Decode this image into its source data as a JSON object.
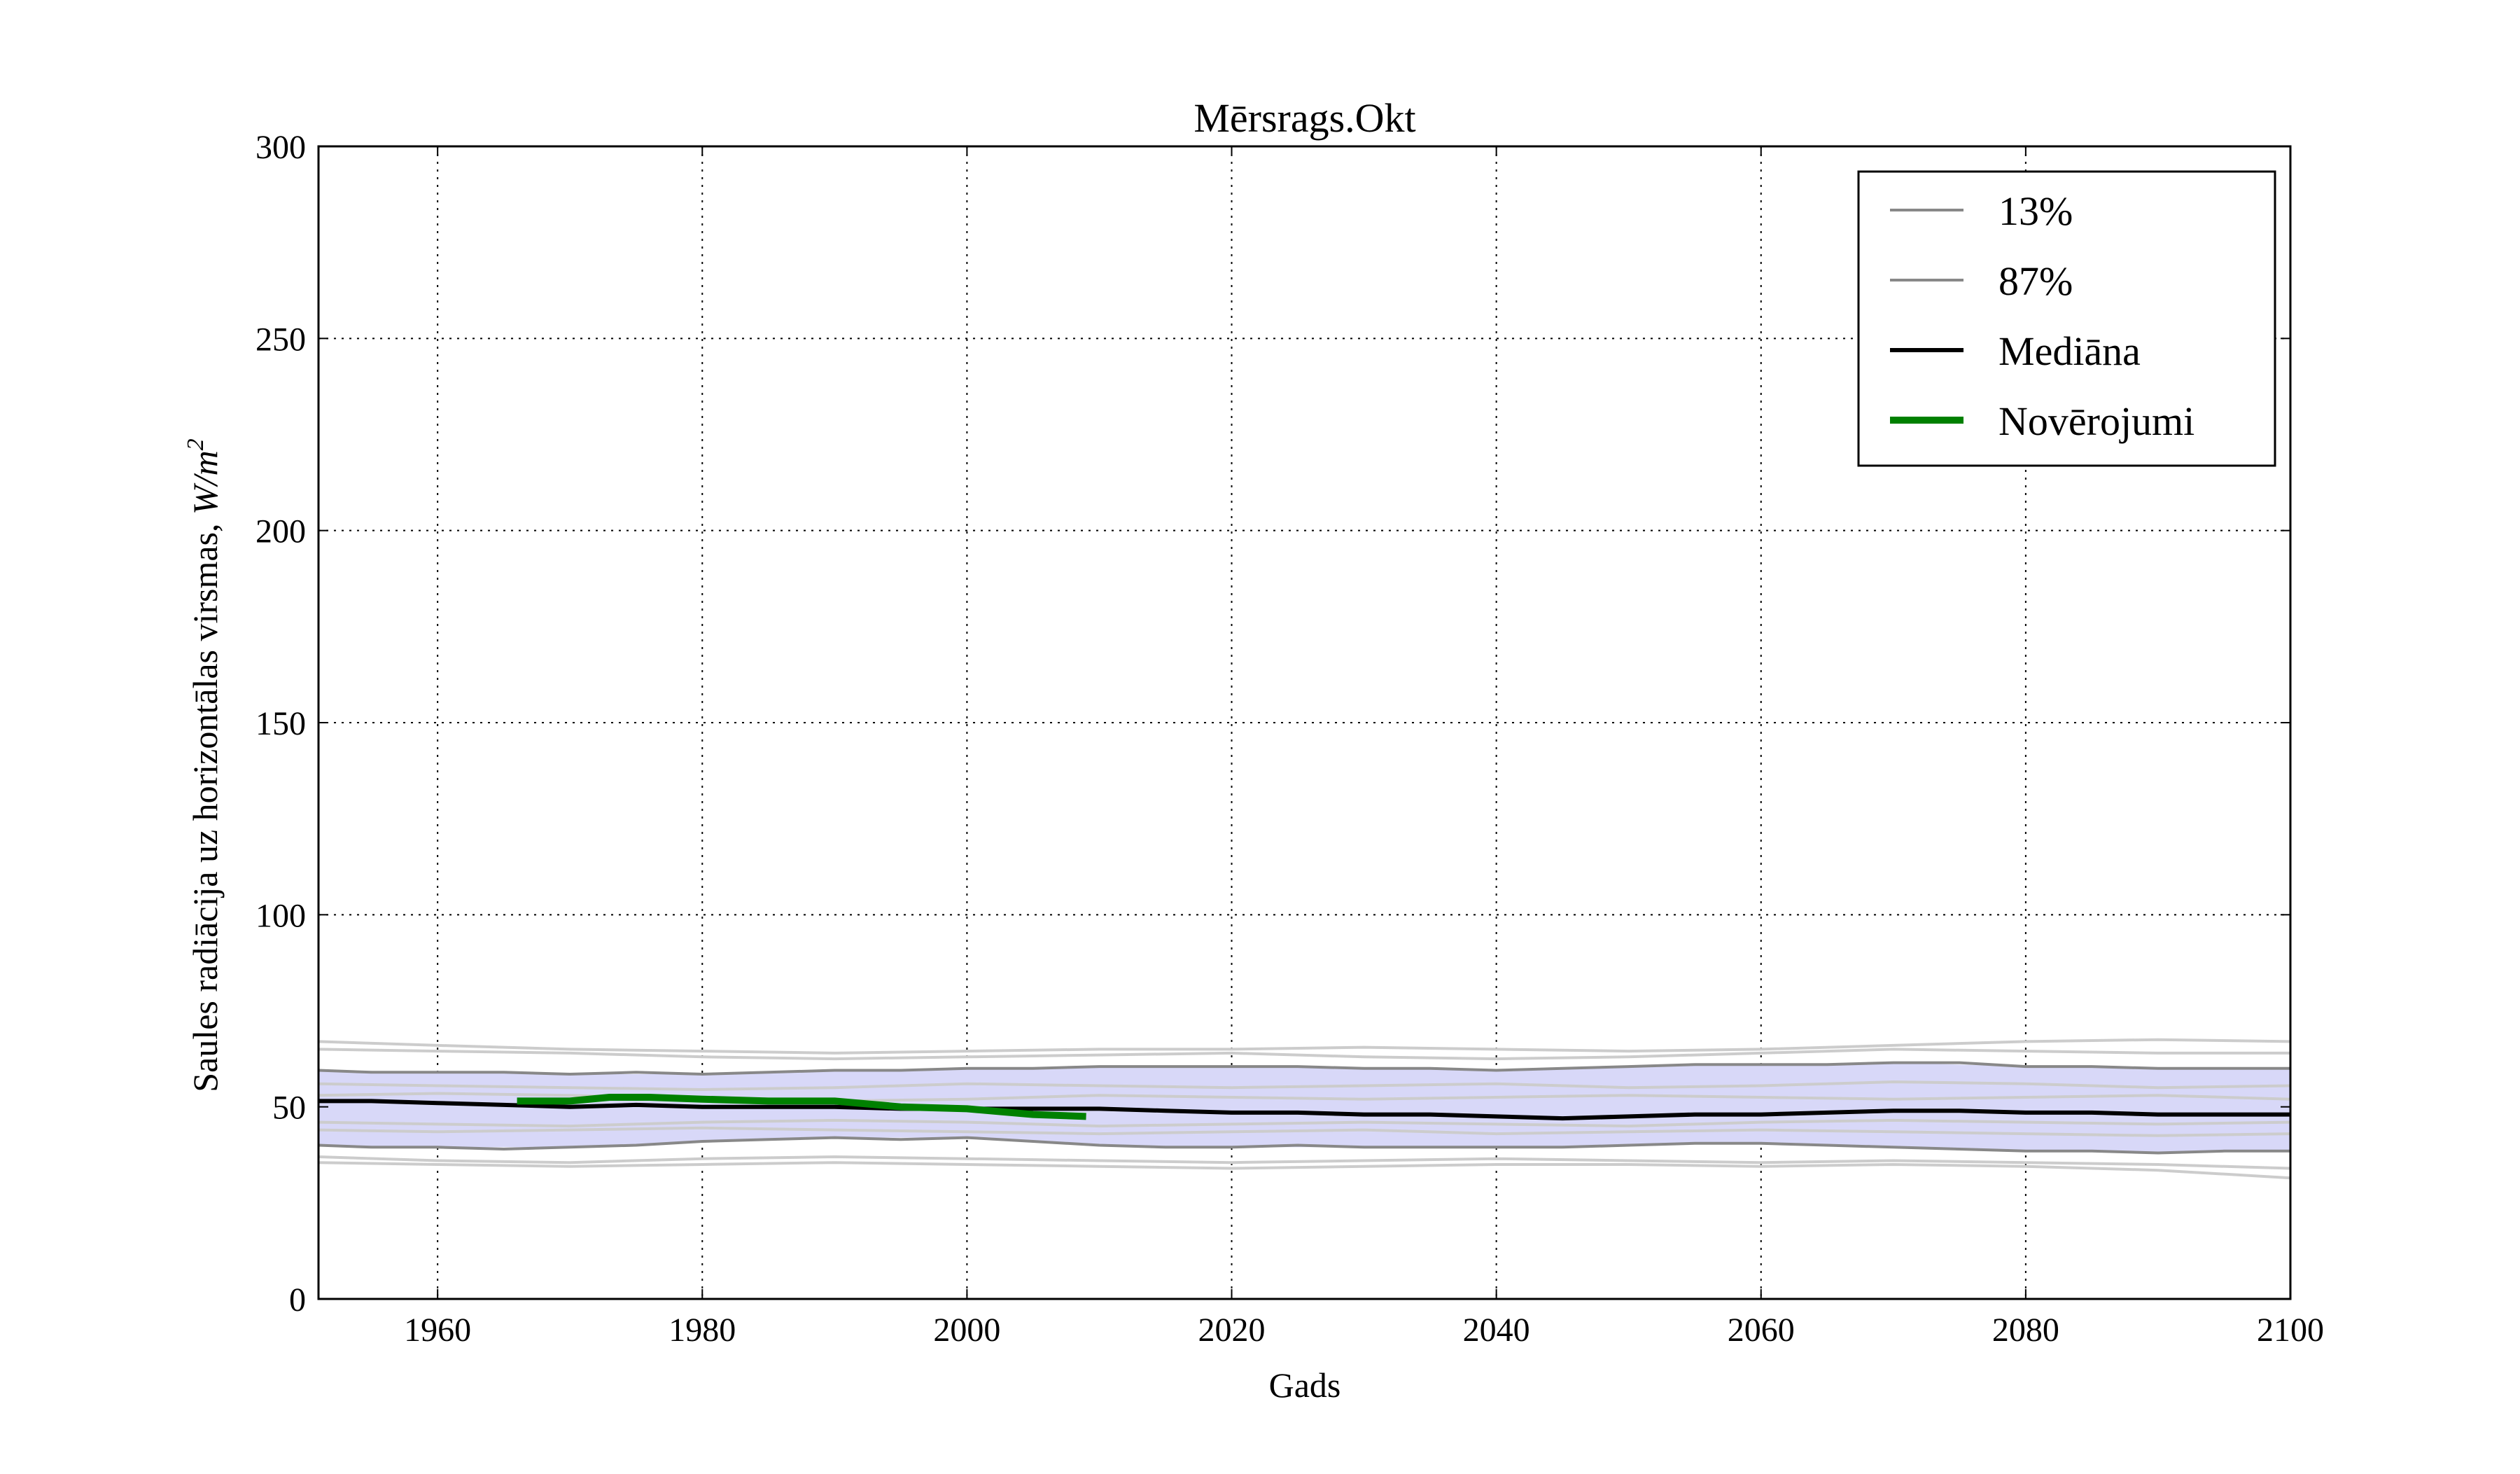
{
  "chart_data": {
    "type": "line",
    "title": "Mērsrags.Okt",
    "xlabel": "Gads",
    "ylabel": "Saules radiācija uz horizontālas virsmas,",
    "ylabel_unit": "W/m",
    "ylabel_unit_exp": "2",
    "xlim": [
      1951,
      2100
    ],
    "ylim": [
      0,
      300
    ],
    "xticks": [
      1960,
      1980,
      2000,
      2020,
      2040,
      2060,
      2080,
      2100
    ],
    "yticks": [
      0,
      50,
      100,
      150,
      200,
      250,
      300
    ],
    "grid": true,
    "legend_position": "top-right",
    "band": {
      "color": "#d8d8f8",
      "x": [
        1951,
        1960,
        1970,
        1980,
        1990,
        2000,
        2010,
        2020,
        2030,
        2040,
        2050,
        2060,
        2070,
        2080,
        2090,
        2100
      ],
      "lower": [
        40,
        39.5,
        39.5,
        41,
        42,
        42,
        40,
        39.5,
        39.5,
        39.5,
        40,
        40.5,
        39.5,
        38.5,
        38,
        38.5
      ],
      "upper": [
        59.5,
        59,
        58.5,
        58.5,
        59.5,
        60,
        60.5,
        60.5,
        60,
        59.5,
        60.5,
        61,
        61.5,
        60.5,
        60,
        60
      ]
    },
    "ensemble": {
      "color": "#cccccc",
      "x": [
        1951,
        1960,
        1970,
        1980,
        1990,
        2000,
        2010,
        2020,
        2030,
        2040,
        2050,
        2060,
        2070,
        2080,
        2090,
        2100
      ],
      "lines": [
        [
          67,
          66,
          65,
          64.5,
          64,
          64.5,
          65,
          65,
          65.5,
          65,
          64.5,
          65,
          66,
          67,
          67.5,
          67
        ],
        [
          65,
          64.5,
          64,
          63,
          62.5,
          63,
          63.5,
          64,
          63,
          62.5,
          63,
          64,
          65,
          64.5,
          64,
          64
        ],
        [
          56,
          55.5,
          55,
          54.5,
          55,
          56,
          55.5,
          55,
          55.5,
          56,
          55,
          55.5,
          56.5,
          56,
          55,
          55.5
        ],
        [
          53,
          53.5,
          53,
          52,
          51.5,
          52,
          53,
          52.5,
          52,
          52.5,
          53,
          52.5,
          52,
          52.5,
          53,
          52
        ],
        [
          46,
          45.5,
          45,
          46,
          46.5,
          46,
          45,
          45.5,
          46,
          45.5,
          45,
          46,
          46.5,
          46,
          45.5,
          46
        ],
        [
          44,
          43.5,
          44,
          44.5,
          44,
          43.5,
          43,
          43.5,
          44,
          43,
          43.5,
          44,
          43.5,
          43,
          42.5,
          43
        ],
        [
          37,
          36,
          35.5,
          36.5,
          37,
          36.5,
          36,
          35.5,
          36,
          36.5,
          36,
          35.5,
          36,
          35.5,
          35,
          34
        ],
        [
          35.5,
          35,
          34.5,
          35,
          35.5,
          35,
          34.5,
          34,
          34.5,
          35,
          35,
          34.5,
          35,
          34.5,
          33.5,
          31.5
        ]
      ]
    },
    "series": [
      {
        "name": "13%",
        "color": "#888888",
        "x": [
          1951,
          1955,
          1960,
          1965,
          1970,
          1975,
          1980,
          1985,
          1990,
          1995,
          2000,
          2005,
          2010,
          2015,
          2020,
          2025,
          2030,
          2035,
          2040,
          2045,
          2050,
          2055,
          2060,
          2065,
          2070,
          2075,
          2080,
          2085,
          2090,
          2095,
          2100
        ],
        "values": [
          40,
          39.5,
          39.5,
          39,
          39.5,
          40,
          41,
          41.5,
          42,
          41.5,
          42,
          41,
          40,
          39.5,
          39.5,
          40,
          39.5,
          39.5,
          39.5,
          39.5,
          40,
          40.5,
          40.5,
          40,
          39.5,
          39,
          38.5,
          38.5,
          38,
          38.5,
          38.5
        ]
      },
      {
        "name": "87%",
        "color": "#888888",
        "x": [
          1951,
          1955,
          1960,
          1965,
          1970,
          1975,
          1980,
          1985,
          1990,
          1995,
          2000,
          2005,
          2010,
          2015,
          2020,
          2025,
          2030,
          2035,
          2040,
          2045,
          2050,
          2055,
          2060,
          2065,
          2070,
          2075,
          2080,
          2085,
          2090,
          2095,
          2100
        ],
        "values": [
          59.5,
          59,
          59,
          59,
          58.5,
          59,
          58.5,
          59,
          59.5,
          59.5,
          60,
          60,
          60.5,
          60.5,
          60.5,
          60.5,
          60,
          60,
          59.5,
          60,
          60.5,
          61,
          61,
          61,
          61.5,
          61.5,
          60.5,
          60.5,
          60,
          60,
          60
        ]
      },
      {
        "name": "Mediāna",
        "color": "#000000",
        "x": [
          1951,
          1955,
          1960,
          1965,
          1970,
          1975,
          1980,
          1985,
          1990,
          1995,
          2000,
          2005,
          2010,
          2015,
          2020,
          2025,
          2030,
          2035,
          2040,
          2045,
          2050,
          2055,
          2060,
          2065,
          2070,
          2075,
          2080,
          2085,
          2090,
          2095,
          2100
        ],
        "values": [
          51.5,
          51.5,
          51,
          50.5,
          50,
          50.5,
          50,
          50,
          50,
          49.5,
          49.5,
          49.5,
          49.5,
          49,
          48.5,
          48.5,
          48,
          48,
          47.5,
          47,
          47.5,
          48,
          48,
          48.5,
          49,
          49,
          48.5,
          48.5,
          48,
          48,
          48
        ]
      },
      {
        "name": "Novērojumi",
        "color": "#008000",
        "x": [
          1966,
          1970,
          1973,
          1976,
          1980,
          1985,
          1990,
          1995,
          2000,
          2005,
          2009
        ],
        "values": [
          51.5,
          51.5,
          52.5,
          52.5,
          52,
          51.5,
          51.5,
          50,
          49.5,
          48,
          47.5
        ]
      }
    ]
  }
}
